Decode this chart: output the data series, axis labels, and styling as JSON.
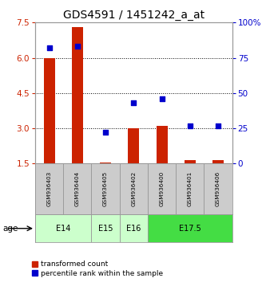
{
  "title": "GDS4591 / 1451242_a_at",
  "samples": [
    "GSM936403",
    "GSM936404",
    "GSM936405",
    "GSM936402",
    "GSM936400",
    "GSM936401",
    "GSM936406"
  ],
  "transformed_count": [
    6.0,
    7.3,
    1.55,
    3.0,
    3.1,
    1.65,
    1.65
  ],
  "percentile_rank": [
    82,
    83,
    22,
    43,
    46,
    27,
    27
  ],
  "age_groups": [
    {
      "label": "E14",
      "start": 0,
      "end": 1,
      "color": "#ccffcc"
    },
    {
      "label": "E15",
      "start": 2,
      "end": 2,
      "color": "#ccffcc"
    },
    {
      "label": "E16",
      "start": 3,
      "end": 3,
      "color": "#ccffcc"
    },
    {
      "label": "E17.5",
      "start": 4,
      "end": 6,
      "color": "#44dd44"
    }
  ],
  "ylim_left": [
    1.5,
    7.5
  ],
  "ylim_right": [
    0,
    100
  ],
  "yticks_left": [
    1.5,
    3.0,
    4.5,
    6.0,
    7.5
  ],
  "yticks_right": [
    0,
    25,
    50,
    75,
    100
  ],
  "bar_color": "#cc2200",
  "dot_color": "#0000cc",
  "bar_width": 0.4,
  "grid_color": "#000000",
  "bg_color": "#ffffff",
  "plot_bg": "#ffffff",
  "age_label": "age",
  "legend_bar": "transformed count",
  "legend_dot": "percentile rank within the sample",
  "title_fontsize": 10,
  "tick_fontsize": 7.5,
  "left_tick_color": "#cc2200",
  "right_tick_color": "#0000cc",
  "sample_box_color": "#cccccc",
  "e14_color": "#ccffcc",
  "e175_color": "#44dd44"
}
